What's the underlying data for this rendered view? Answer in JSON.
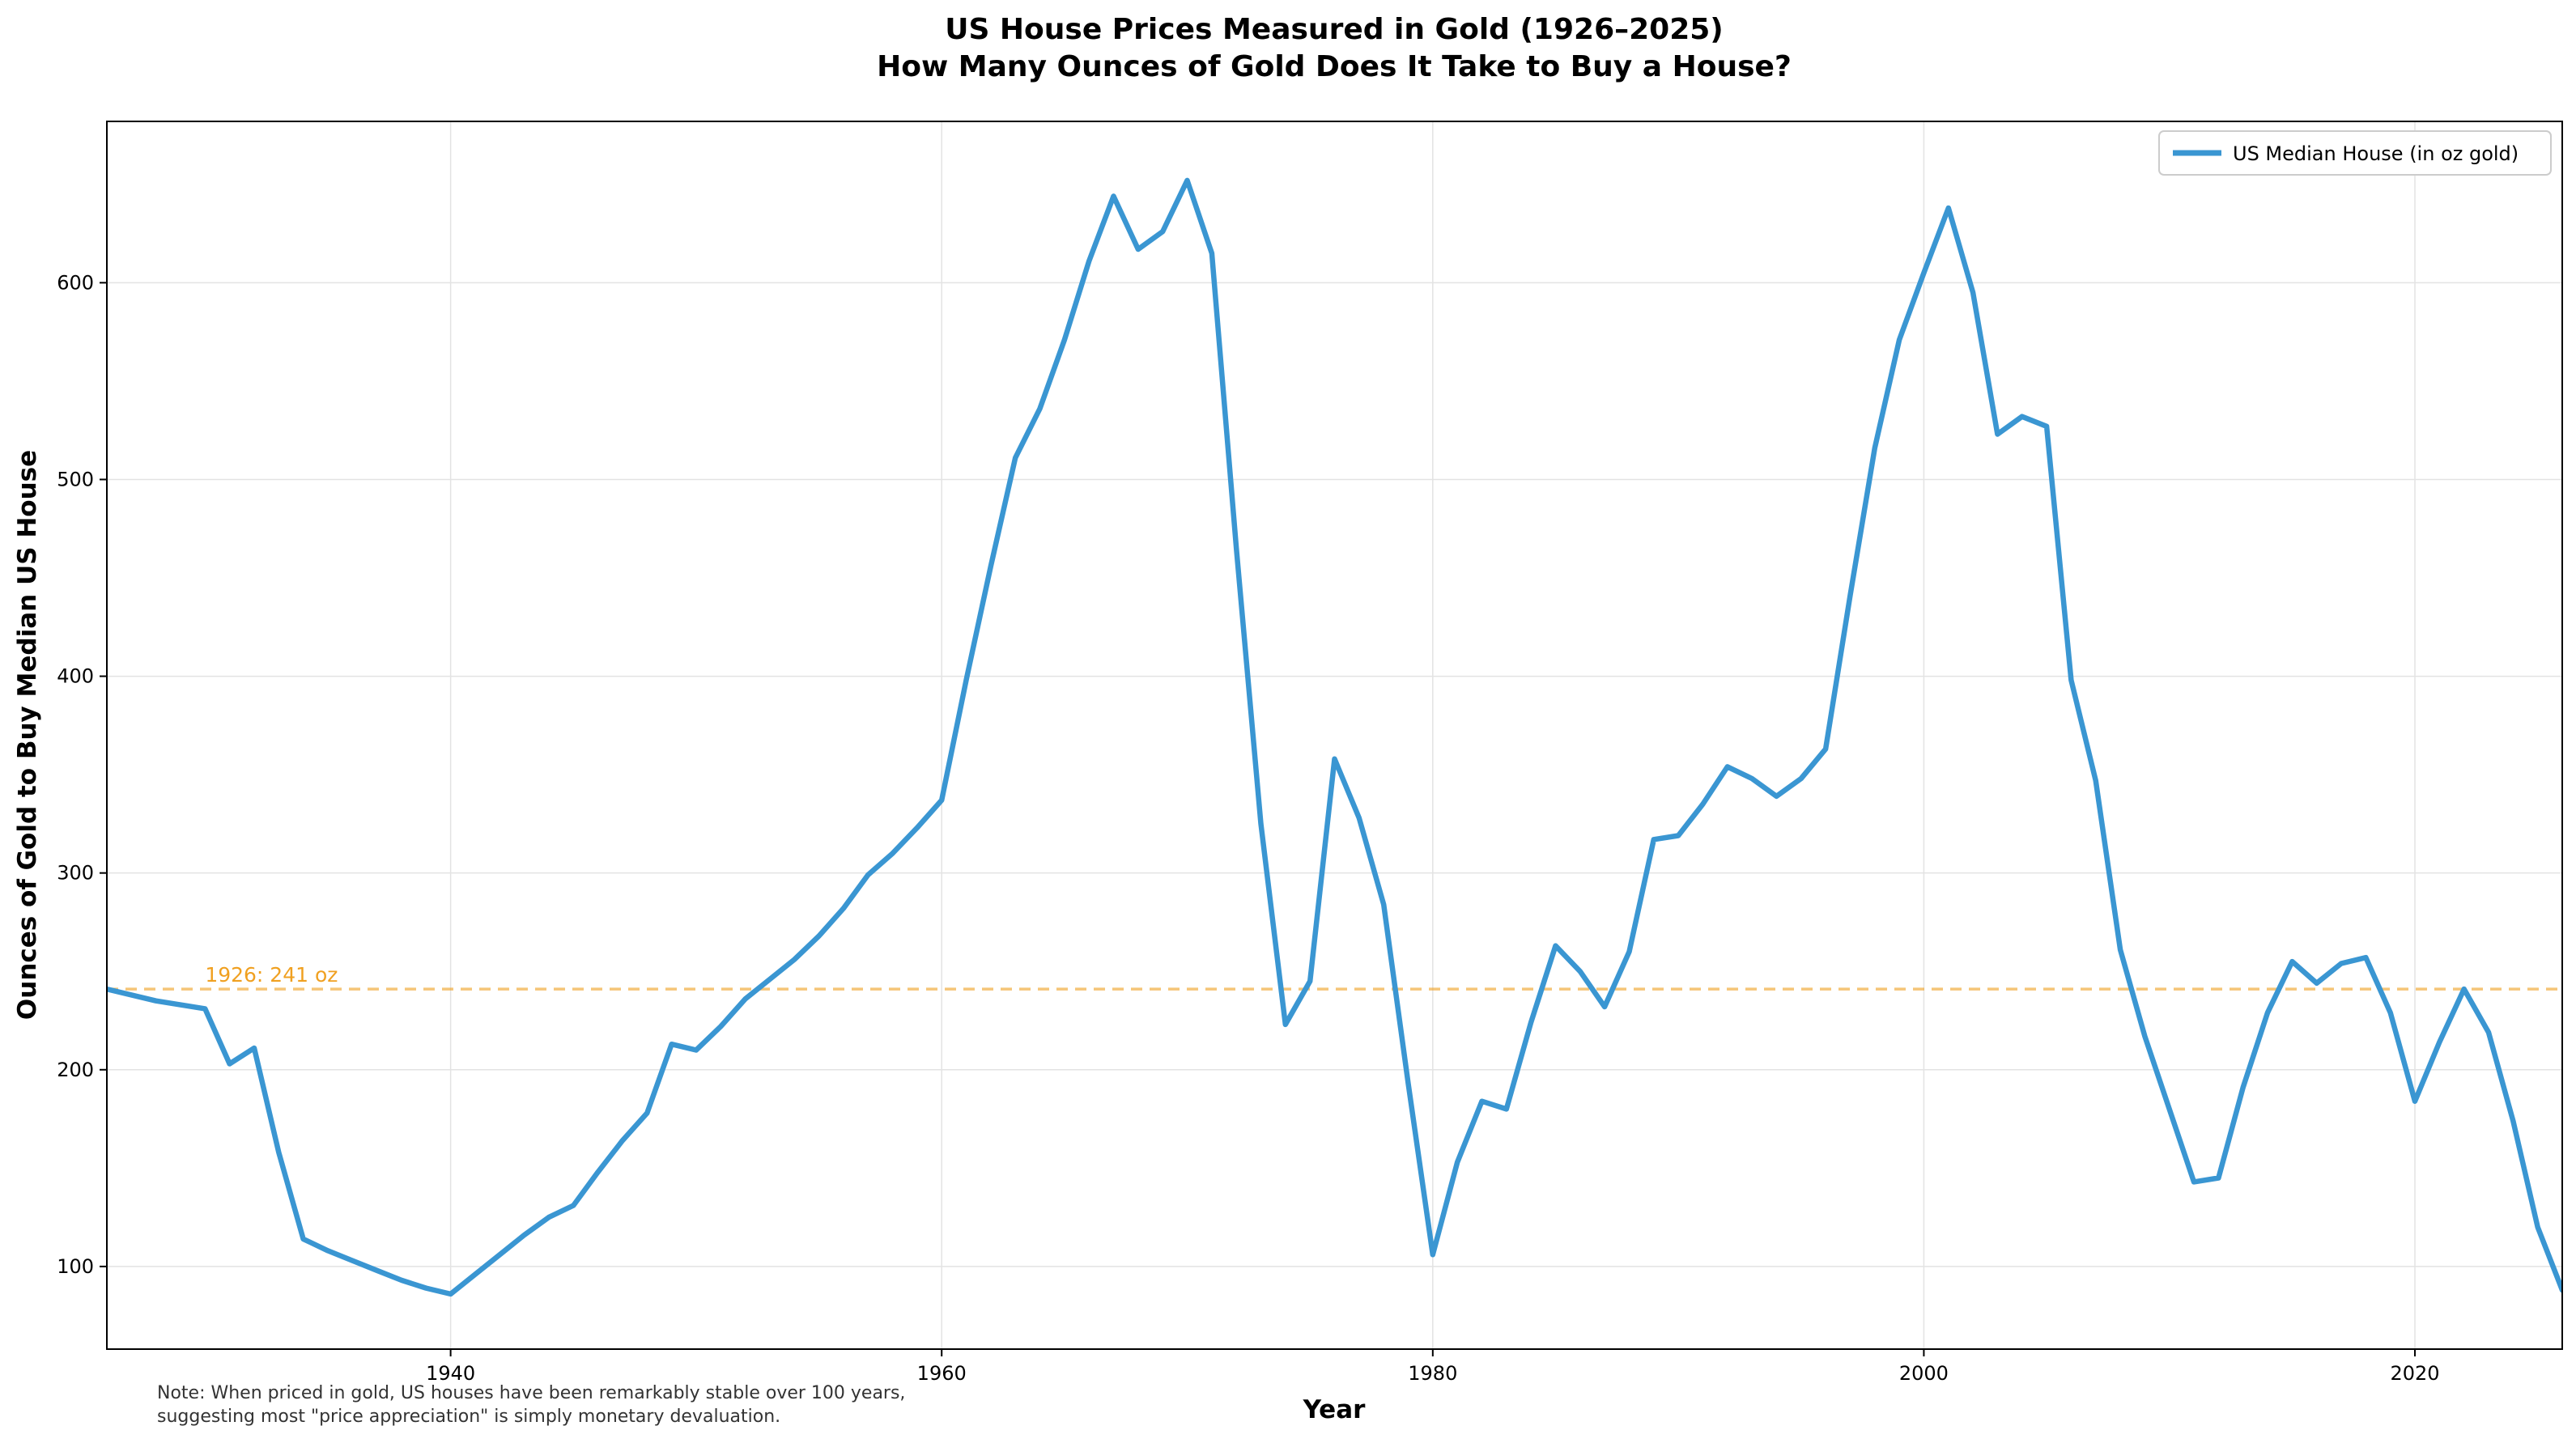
{
  "chart_data": {
    "type": "line",
    "title": "US House Prices Measured in Gold (1926–2025)",
    "subtitle": "How Many Ounces of Gold Does It Take to Buy a House?",
    "xlabel": "Year",
    "ylabel": "Ounces of Gold to Buy Median US House",
    "xlim": [
      1926,
      2026
    ],
    "ylim": [
      58,
      682
    ],
    "x_ticks": [
      1940,
      1960,
      1980,
      2000,
      2020
    ],
    "y_ticks": [
      100,
      200,
      300,
      400,
      500,
      600
    ],
    "grid": true,
    "legend_position": "top-right",
    "series": [
      {
        "name": "US Median House (in oz gold)",
        "color": "#3a96d2",
        "x": [
          1926,
          1928,
          1930,
          1931,
          1932,
          1933,
          1934,
          1935,
          1936,
          1937,
          1938,
          1939,
          1940,
          1941,
          1942,
          1943,
          1944,
          1945,
          1946,
          1947,
          1948,
          1949,
          1950,
          1951,
          1952,
          1953,
          1954,
          1955,
          1956,
          1957,
          1958,
          1959,
          1960,
          1961,
          1962,
          1963,
          1964,
          1965,
          1966,
          1967,
          1968,
          1969,
          1970,
          1971,
          1972,
          1973,
          1974,
          1975,
          1976,
          1977,
          1978,
          1979,
          1980,
          1981,
          1982,
          1983,
          1984,
          1985,
          1986,
          1987,
          1988,
          1989,
          1990,
          1991,
          1992,
          1993,
          1994,
          1995,
          1996,
          1997,
          1998,
          1999,
          2000,
          2001,
          2002,
          2003,
          2004,
          2005,
          2006,
          2007,
          2008,
          2009,
          2010,
          2011,
          2012,
          2013,
          2014,
          2015,
          2016,
          2017,
          2018,
          2019,
          2020,
          2021,
          2022,
          2023,
          2024,
          2025,
          2026
        ],
        "y": [
          241,
          235,
          231,
          203,
          211,
          158,
          114,
          108,
          103,
          98,
          93,
          89,
          86,
          96,
          106,
          116,
          125,
          131,
          148,
          164,
          178,
          213,
          210,
          222,
          236,
          246,
          256,
          268,
          282,
          299,
          310,
          323,
          337,
          398,
          456,
          511,
          536,
          571,
          611,
          644,
          617,
          626,
          652,
          615,
          465,
          325,
          223,
          245,
          358,
          328,
          284,
          193,
          106,
          153,
          184,
          180,
          224,
          263,
          250,
          232,
          260,
          317,
          319,
          335,
          354,
          348,
          339,
          348,
          363,
          441,
          516,
          571,
          605,
          638,
          595,
          523,
          532,
          527,
          398,
          347,
          261,
          217,
          180,
          143,
          145,
          191,
          229,
          255,
          244,
          254,
          257,
          229,
          184,
          214,
          241,
          219,
          174,
          120,
          88
        ]
      }
    ],
    "reference_line": {
      "value": 241,
      "label": "1926: 241 oz",
      "color": "#f0a020"
    },
    "note": [
      "Note: When priced in gold, US houses have been remarkably stable over 100 years,",
      "suggesting most \"price appreciation\" is simply monetary devaluation."
    ]
  }
}
